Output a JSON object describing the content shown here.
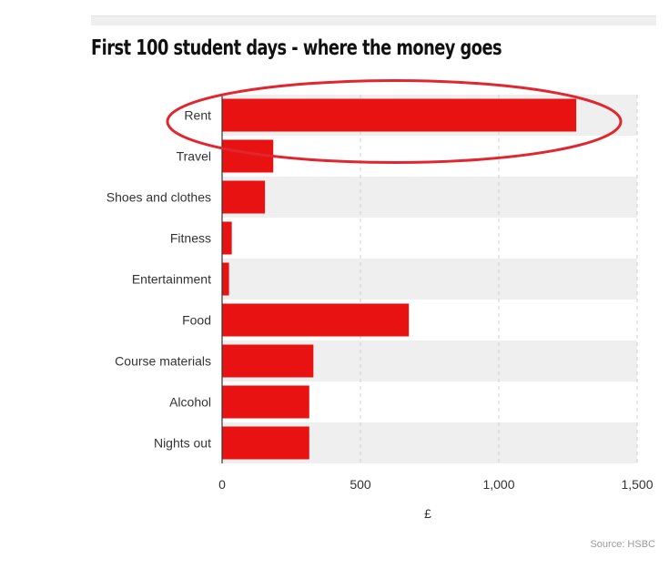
{
  "page": {
    "title": "First 100 student days - where the money goes",
    "source": "Source: HSBC"
  },
  "colors": {
    "bar": "#e81212",
    "band": "#efefef",
    "highlight_ring": "#e0262e"
  },
  "chart_data": {
    "type": "bar",
    "orientation": "horizontal",
    "title": "First 100 student days - where the money goes",
    "categories": [
      "Rent",
      "Travel",
      "Shoes and clothes",
      "Fitness",
      "Entertainment",
      "Food",
      "Course materials",
      "Alcohol",
      "Nights out"
    ],
    "values": [
      1280,
      185,
      155,
      35,
      25,
      675,
      330,
      315,
      315
    ],
    "xlabel": "£",
    "ylabel": "",
    "xlim": [
      0,
      1500
    ],
    "xticks": [
      0,
      500,
      1000,
      1500
    ],
    "xtick_labels": [
      "0",
      "500",
      "1,000",
      "1,500"
    ],
    "grid": "vertical dashed",
    "highlighted_category": "Rent"
  }
}
